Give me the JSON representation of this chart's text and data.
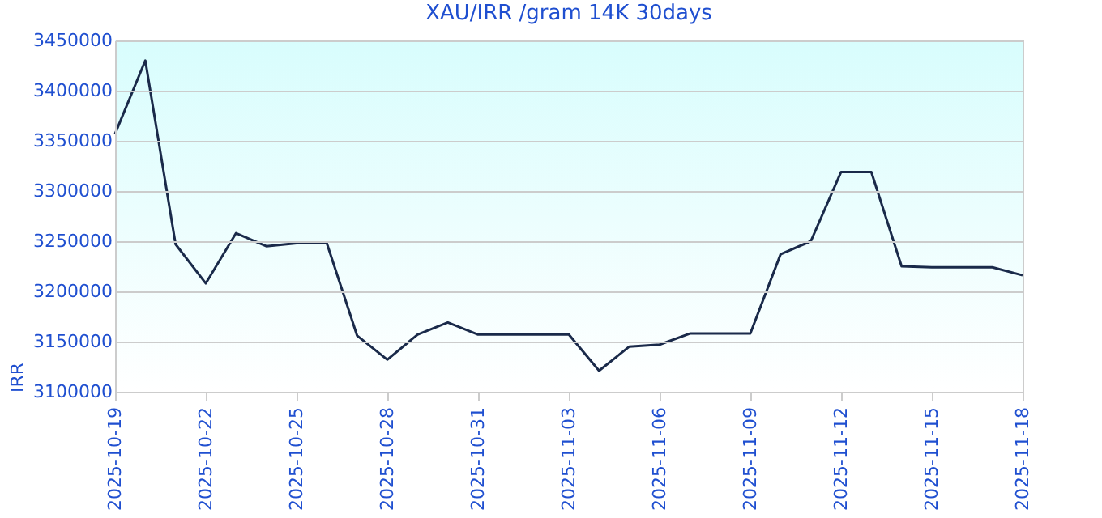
{
  "chart_data": {
    "type": "line",
    "title": "XAU/IRR /gram 14K 30days",
    "ylabel": "IRR",
    "x": [
      "2025-10-19",
      "2025-10-20",
      "2025-10-21",
      "2025-10-22",
      "2025-10-23",
      "2025-10-24",
      "2025-10-25",
      "2025-10-26",
      "2025-10-27",
      "2025-10-28",
      "2025-10-29",
      "2025-10-30",
      "2025-10-31",
      "2025-11-01",
      "2025-11-02",
      "2025-11-03",
      "2025-11-04",
      "2025-11-05",
      "2025-11-06",
      "2025-11-07",
      "2025-11-08",
      "2025-11-09",
      "2025-11-10",
      "2025-11-11",
      "2025-11-12",
      "2025-11-13",
      "2025-11-14",
      "2025-11-15",
      "2025-11-16",
      "2025-11-17",
      "2025-11-18"
    ],
    "series": [
      {
        "color": "#1a2a4a",
        "values": [
          3357000,
          3430000,
          3247000,
          3208000,
          3258000,
          3245000,
          3248000,
          3248000,
          3156000,
          3132000,
          3157000,
          3169000,
          3157000,
          3157000,
          3157000,
          3157000,
          3121000,
          3145000,
          3147000,
          3158000,
          3158000,
          3158000,
          3237000,
          3250000,
          3319000,
          3319000,
          3225000,
          3224000,
          3224000,
          3224000,
          3216000
        ]
      }
    ],
    "xlim": [
      "2025-10-19",
      "2025-11-18"
    ],
    "xticks": [
      "2025-10-19",
      "2025-10-22",
      "2025-10-25",
      "2025-10-28",
      "2025-10-31",
      "2025-11-03",
      "2025-11-06",
      "2025-11-09",
      "2025-11-12",
      "2025-11-15",
      "2025-11-18"
    ],
    "ylim": [
      3100000,
      3450000
    ],
    "yticks": [
      3100000,
      3150000,
      3200000,
      3250000,
      3300000,
      3350000,
      3400000,
      3450000
    ],
    "grid": "y",
    "marker": "none",
    "line_style": "solid"
  }
}
